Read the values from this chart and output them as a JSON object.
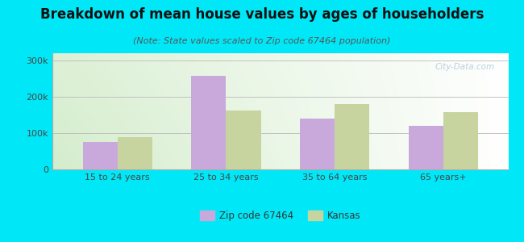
{
  "title": "Breakdown of mean house values by ages of householders",
  "subtitle": "(Note: State values scaled to Zip code 67464 population)",
  "categories": [
    "15 to 24 years",
    "25 to 34 years",
    "35 to 64 years",
    "65 years+"
  ],
  "zip_values": [
    75000,
    258000,
    140000,
    120000
  ],
  "kansas_values": [
    88000,
    163000,
    180000,
    158000
  ],
  "zip_color": "#c9a8dc",
  "kansas_color": "#c8d4a0",
  "ylim": [
    0,
    320000
  ],
  "yticks": [
    0,
    100000,
    200000,
    300000
  ],
  "ytick_labels": [
    "0",
    "100k",
    "200k",
    "300k"
  ],
  "background_outer": "#00e8f8",
  "legend_zip_label": "Zip code 67464",
  "legend_kansas_label": "Kansas",
  "bar_width": 0.32,
  "title_fontsize": 12,
  "subtitle_fontsize": 8,
  "watermark": "City-Data.com"
}
